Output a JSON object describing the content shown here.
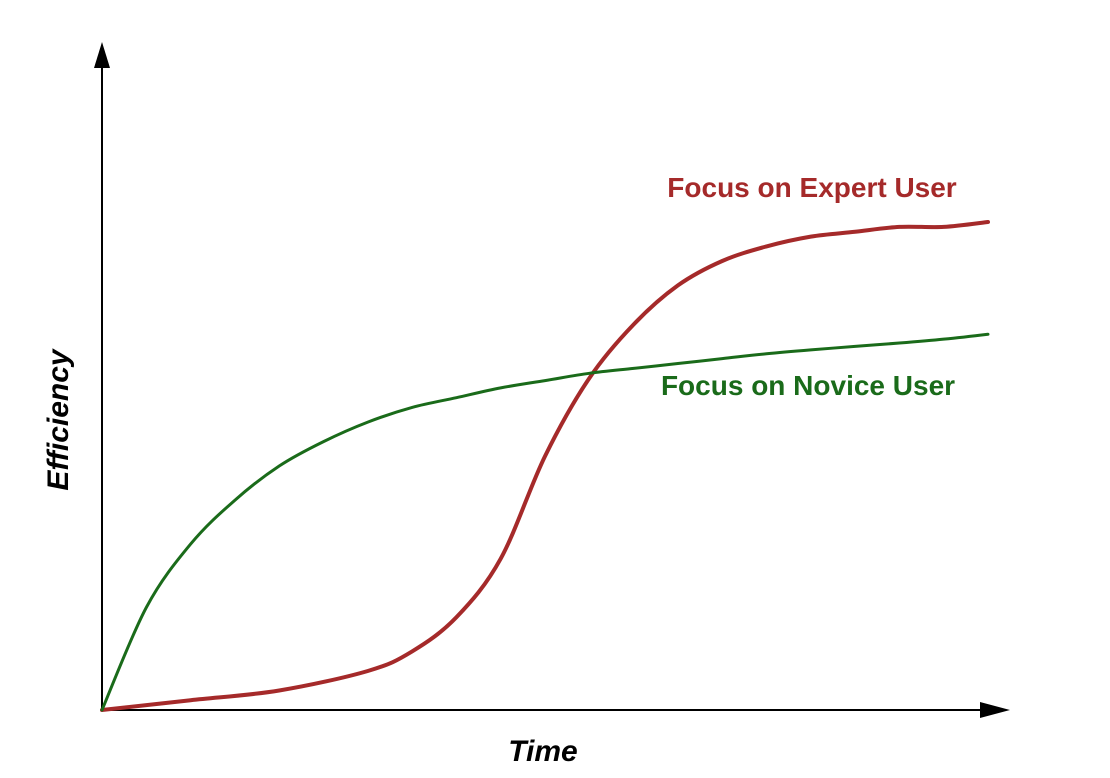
{
  "chart_data": {
    "type": "line",
    "title": "",
    "xlabel": "Time",
    "ylabel": "Efficiency",
    "grid": false,
    "xlim": [
      0,
      100
    ],
    "ylim": [
      0,
      100
    ],
    "series": [
      {
        "name": "Focus on Expert User",
        "color": "#a52a2a",
        "x": [
          0,
          10,
          20,
          30,
          35,
          40,
          45,
          50,
          55,
          60,
          65,
          70,
          75,
          80,
          85,
          90,
          95,
          100
        ],
        "y": [
          0,
          2,
          4,
          8,
          12,
          19,
          31,
          52,
          68,
          79,
          87,
          92,
          95,
          97,
          98,
          99,
          99,
          100
        ]
      },
      {
        "name": "Focus on Novice User",
        "color": "#1a6b1a",
        "x": [
          0,
          5,
          10,
          15,
          20,
          25,
          30,
          35,
          40,
          45,
          50,
          55,
          60,
          65,
          70,
          75,
          80,
          85,
          90,
          95,
          100
        ],
        "y": [
          0,
          21,
          34,
          43,
          50,
          55,
          59,
          62,
          64,
          66,
          67.5,
          69,
          70,
          71,
          72,
          73,
          73.8,
          74.5,
          75.2,
          76,
          77
        ]
      }
    ]
  }
}
